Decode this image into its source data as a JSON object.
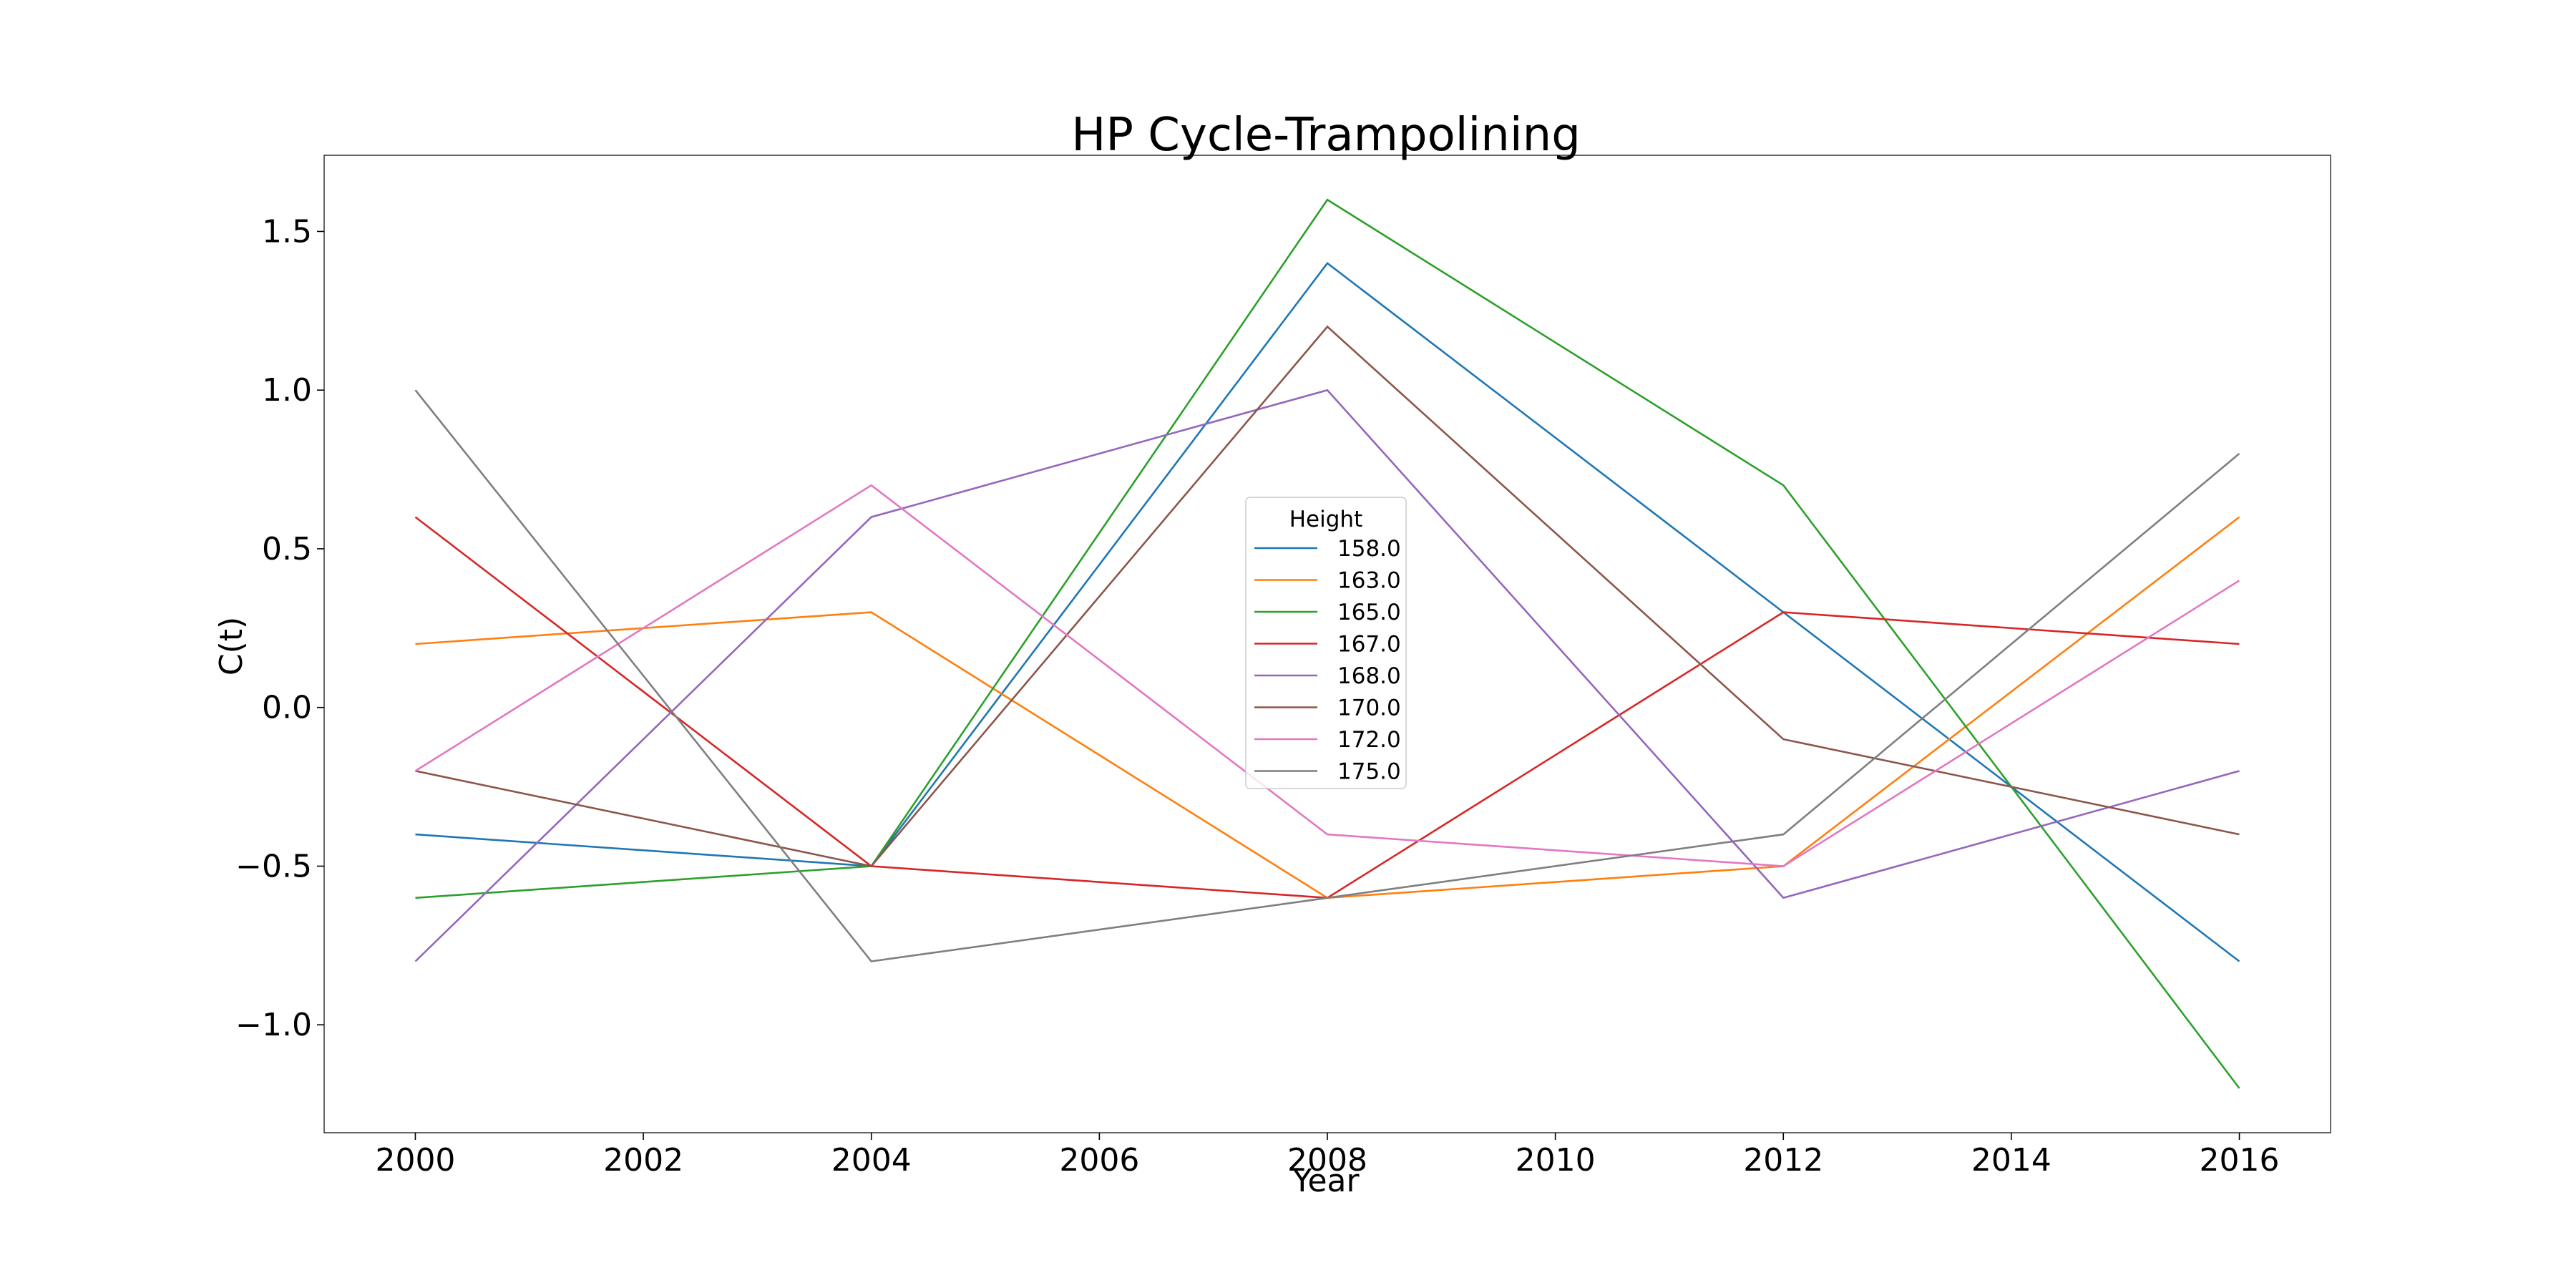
{
  "chart_data": {
    "type": "line",
    "title": "HP Cycle-Trampolining",
    "xlabel": "Year",
    "ylabel": "C(t)",
    "xlim": [
      1999.2,
      2016.8
    ],
    "ylim": [
      -1.34,
      1.74
    ],
    "xticks": [
      2000,
      2002,
      2004,
      2006,
      2008,
      2010,
      2012,
      2014,
      2016
    ],
    "xtick_labels": [
      "2000",
      "2002",
      "2004",
      "2006",
      "2008",
      "2010",
      "2012",
      "2014",
      "2016"
    ],
    "yticks": [
      -1.0,
      -0.5,
      0.0,
      0.5,
      1.0,
      1.5
    ],
    "ytick_labels": [
      "−1.0",
      "−0.5",
      "0.0",
      "0.5",
      "1.0",
      "1.5"
    ],
    "grid": false,
    "legend": {
      "title": "Height",
      "placement": "center"
    },
    "x": [
      2000,
      2004,
      2008,
      2012,
      2016
    ],
    "series": [
      {
        "name": "158.0",
        "color": "#1f77b4",
        "values": [
          -0.4,
          -0.5,
          1.4,
          0.3,
          -0.8
        ]
      },
      {
        "name": "163.0",
        "color": "#ff7f0e",
        "values": [
          0.2,
          0.3,
          -0.6,
          -0.5,
          0.6
        ]
      },
      {
        "name": "165.0",
        "color": "#2ca02c",
        "values": [
          -0.6,
          -0.5,
          1.6,
          0.7,
          -1.2
        ]
      },
      {
        "name": "167.0",
        "color": "#d62728",
        "values": [
          0.6,
          -0.5,
          -0.6,
          0.3,
          0.2
        ]
      },
      {
        "name": "168.0",
        "color": "#9467bd",
        "values": [
          -0.8,
          0.6,
          1.0,
          -0.6,
          -0.2
        ]
      },
      {
        "name": "170.0",
        "color": "#8c564b",
        "values": [
          -0.2,
          -0.5,
          1.2,
          -0.1,
          -0.4
        ]
      },
      {
        "name": "172.0",
        "color": "#e377c2",
        "values": [
          -0.2,
          0.7,
          -0.4,
          -0.5,
          0.4
        ]
      },
      {
        "name": "175.0",
        "color": "#7f7f7f",
        "values": [
          1.0,
          -0.8,
          -0.6,
          -0.4,
          0.8
        ]
      }
    ]
  }
}
